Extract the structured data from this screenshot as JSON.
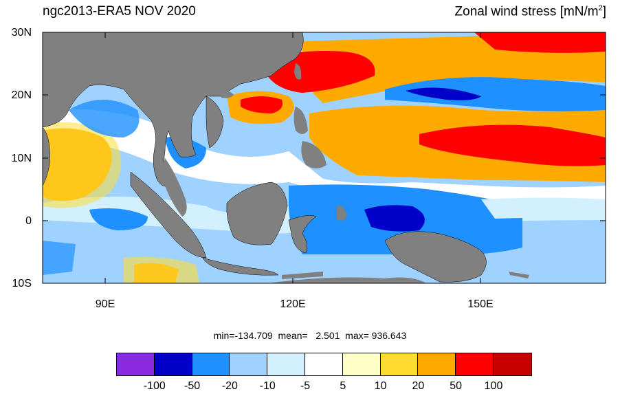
{
  "header": {
    "left_title": "ngc2013-ERA5  NOV 2020",
    "right_title_main": "Zonal wind stress [mN/m",
    "right_title_sup": "2",
    "right_title_end": "]"
  },
  "axes": {
    "lat_labels": [
      "30N",
      "20N",
      "10N",
      "0",
      "10S"
    ],
    "lon_labels": [
      "90E",
      "120E",
      "150E"
    ]
  },
  "stats": {
    "text": "min=-134.709  mean=   2.501  max= 936.643"
  },
  "colorbar": {
    "colors": [
      "#8a2be2",
      "#0000c8",
      "#1e90ff",
      "#a0d2ff",
      "#d2f0ff",
      "#ffffff",
      "#ffffc8",
      "#ffdc32",
      "#ffaa00",
      "#ff0000",
      "#c80000"
    ],
    "labels": [
      "-100",
      "-50",
      "-20",
      "-10",
      "-5",
      "5",
      "10",
      "20",
      "50",
      "100"
    ]
  },
  "map_colors": {
    "land": "#808080",
    "ocean_base": "#a0d2ff"
  }
}
